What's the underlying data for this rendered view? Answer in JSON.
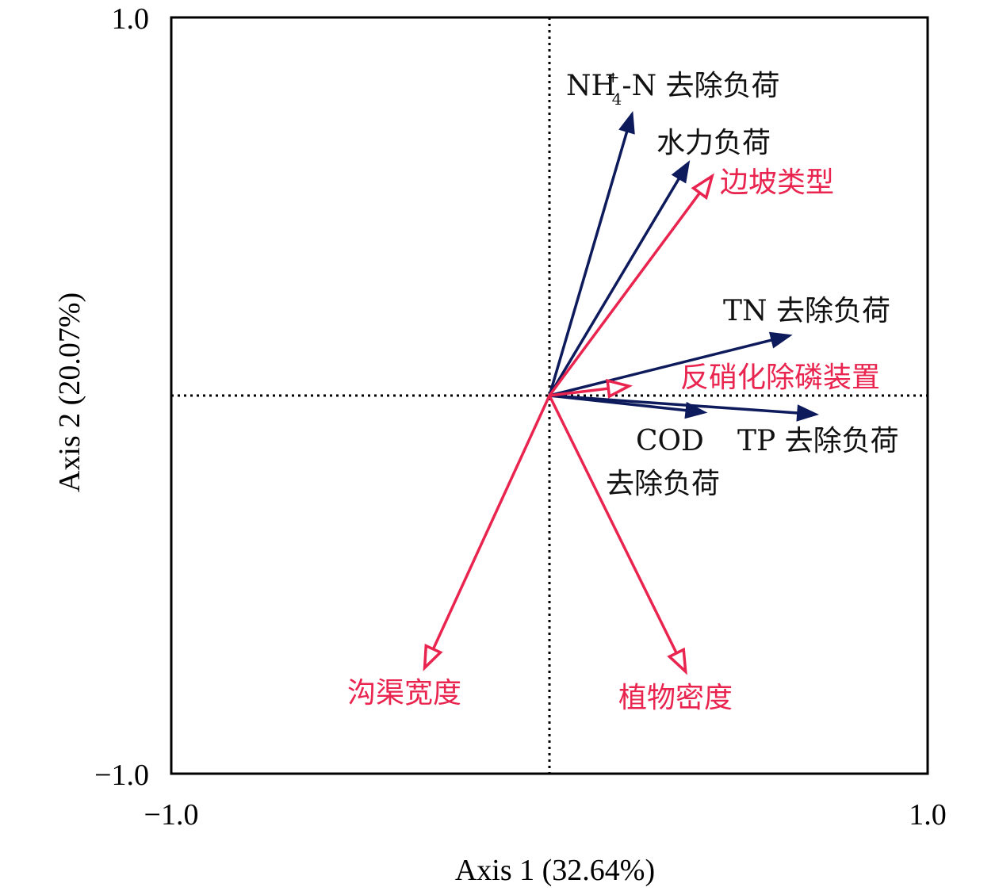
{
  "chart_data": {
    "type": "biplot",
    "xlabel": "Axis 1 (32.64%)",
    "ylabel": "Axis 2 (20.07%)",
    "xlim": [
      -1.0,
      1.0
    ],
    "ylim": [
      -1.0,
      1.0
    ],
    "x_ticks": [
      "−1.0",
      "1.0"
    ],
    "y_ticks": [
      "1.0",
      "−1.0"
    ],
    "reference_lines": "dotted lines at x=0 and y=0",
    "colors": {
      "response": "#0d1a5c",
      "explanatory": "#e8244f"
    },
    "series": [
      {
        "name": "response",
        "arrow_style": "filled",
        "vectors": [
          {
            "id": "nh4",
            "label_main": "NH",
            "label_sup": "+",
            "label_sub": "4",
            "label_rest": "-N 去除负荷",
            "x": 0.22,
            "y": 0.75
          },
          {
            "id": "hydraulic",
            "label": "水力负荷",
            "x": 0.37,
            "y": 0.62
          },
          {
            "id": "tn",
            "label": "TN 去除负荷",
            "x": 0.64,
            "y": 0.16
          },
          {
            "id": "cod",
            "label": "COD",
            "label_line2": "去除负荷",
            "x": 0.415,
            "y": -0.045
          },
          {
            "id": "tp",
            "label": "TP 去除负荷",
            "x": 0.71,
            "y": -0.05
          }
        ]
      },
      {
        "name": "explanatory",
        "arrow_style": "hollow",
        "vectors": [
          {
            "id": "slope",
            "label": "边坡类型",
            "x": 0.43,
            "y": 0.58
          },
          {
            "id": "denitrif",
            "label": "反硝化除磷装置",
            "x": 0.21,
            "y": 0.025
          },
          {
            "id": "width",
            "label": "沟渠宽度",
            "x": -0.33,
            "y": -0.72
          },
          {
            "id": "plant",
            "label": "植物密度",
            "x": 0.36,
            "y": -0.73
          }
        ]
      }
    ]
  }
}
